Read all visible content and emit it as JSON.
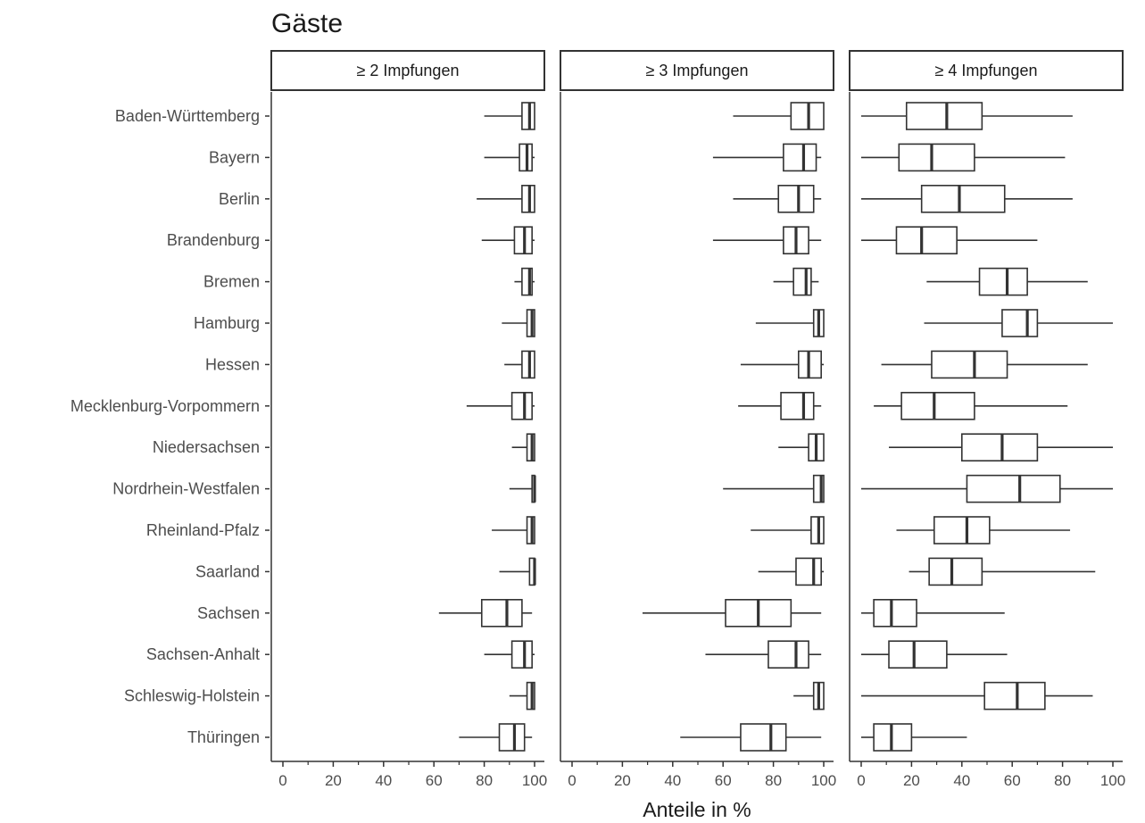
{
  "chart_data": {
    "type": "boxplot",
    "title": "Gäste",
    "xlabel": "Anteile in %",
    "ylabel": "",
    "xlim": [
      0,
      100
    ],
    "x_ticks": [
      "0",
      "20",
      "40",
      "60",
      "80",
      "100"
    ],
    "categories": [
      "Baden-Württemberg",
      "Bayern",
      "Berlin",
      "Brandenburg",
      "Bremen",
      "Hamburg",
      "Hessen",
      "Mecklenburg-Vorpommern",
      "Niedersachsen",
      "Nordrhein-Westfalen",
      "Rheinland-Pfalz",
      "Saarland",
      "Sachsen",
      "Sachsen-Anhalt",
      "Schleswig-Holstein",
      "Thüringen"
    ],
    "panels": [
      {
        "label": "≥ 2 Impfungen",
        "boxes": [
          {
            "min": 80,
            "q1": 95,
            "median": 98,
            "q3": 100,
            "max": 100
          },
          {
            "min": 80,
            "q1": 94,
            "median": 97,
            "q3": 99,
            "max": 100
          },
          {
            "min": 77,
            "q1": 95,
            "median": 98,
            "q3": 100,
            "max": 100
          },
          {
            "min": 79,
            "q1": 92,
            "median": 96,
            "q3": 99,
            "max": 100
          },
          {
            "min": 92,
            "q1": 95,
            "median": 98,
            "q3": 99,
            "max": 100
          },
          {
            "min": 87,
            "q1": 97,
            "median": 99,
            "q3": 100,
            "max": 100
          },
          {
            "min": 88,
            "q1": 95,
            "median": 98,
            "q3": 100,
            "max": 100
          },
          {
            "min": 73,
            "q1": 91,
            "median": 96,
            "q3": 99,
            "max": 100
          },
          {
            "min": 91,
            "q1": 97,
            "median": 99,
            "q3": 100,
            "max": 100
          },
          {
            "min": 90,
            "q1": 99,
            "median": 100,
            "q3": 100,
            "max": 100
          },
          {
            "min": 83,
            "q1": 97,
            "median": 99,
            "q3": 100,
            "max": 100
          },
          {
            "min": 86,
            "q1": 98,
            "median": 100,
            "q3": 100,
            "max": 100
          },
          {
            "min": 62,
            "q1": 79,
            "median": 89,
            "q3": 95,
            "max": 99
          },
          {
            "min": 80,
            "q1": 91,
            "median": 96,
            "q3": 99,
            "max": 100
          },
          {
            "min": 90,
            "q1": 97,
            "median": 99,
            "q3": 100,
            "max": 100
          },
          {
            "min": 70,
            "q1": 86,
            "median": 92,
            "q3": 96,
            "max": 99
          }
        ]
      },
      {
        "label": "≥ 3 Impfungen",
        "boxes": [
          {
            "min": 64,
            "q1": 87,
            "median": 94,
            "q3": 100,
            "max": 100
          },
          {
            "min": 56,
            "q1": 84,
            "median": 92,
            "q3": 97,
            "max": 99
          },
          {
            "min": 64,
            "q1": 82,
            "median": 90,
            "q3": 96,
            "max": 99
          },
          {
            "min": 56,
            "q1": 84,
            "median": 89,
            "q3": 94,
            "max": 99
          },
          {
            "min": 80,
            "q1": 88,
            "median": 93,
            "q3": 95,
            "max": 98
          },
          {
            "min": 73,
            "q1": 96,
            "median": 98,
            "q3": 100,
            "max": 100
          },
          {
            "min": 67,
            "q1": 90,
            "median": 94,
            "q3": 99,
            "max": 100
          },
          {
            "min": 66,
            "q1": 83,
            "median": 92,
            "q3": 96,
            "max": 99
          },
          {
            "min": 82,
            "q1": 94,
            "median": 97,
            "q3": 100,
            "max": 100
          },
          {
            "min": 60,
            "q1": 96,
            "median": 99,
            "q3": 100,
            "max": 100
          },
          {
            "min": 71,
            "q1": 95,
            "median": 98,
            "q3": 100,
            "max": 100
          },
          {
            "min": 74,
            "q1": 89,
            "median": 96,
            "q3": 99,
            "max": 100
          },
          {
            "min": 28,
            "q1": 61,
            "median": 74,
            "q3": 87,
            "max": 99
          },
          {
            "min": 53,
            "q1": 78,
            "median": 89,
            "q3": 94,
            "max": 99
          },
          {
            "min": 88,
            "q1": 96,
            "median": 98,
            "q3": 100,
            "max": 100
          },
          {
            "min": 43,
            "q1": 67,
            "median": 79,
            "q3": 85,
            "max": 99
          }
        ]
      },
      {
        "label": "≥ 4 Impfungen",
        "boxes": [
          {
            "min": 0,
            "q1": 18,
            "median": 34,
            "q3": 48,
            "max": 84
          },
          {
            "min": 0,
            "q1": 15,
            "median": 28,
            "q3": 45,
            "max": 81
          },
          {
            "min": 0,
            "q1": 24,
            "median": 39,
            "q3": 57,
            "max": 84
          },
          {
            "min": 0,
            "q1": 14,
            "median": 24,
            "q3": 38,
            "max": 70
          },
          {
            "min": 26,
            "q1": 47,
            "median": 58,
            "q3": 66,
            "max": 90
          },
          {
            "min": 25,
            "q1": 56,
            "median": 66,
            "q3": 70,
            "max": 100
          },
          {
            "min": 8,
            "q1": 28,
            "median": 45,
            "q3": 58,
            "max": 90
          },
          {
            "min": 5,
            "q1": 16,
            "median": 29,
            "q3": 45,
            "max": 82
          },
          {
            "min": 11,
            "q1": 40,
            "median": 56,
            "q3": 70,
            "max": 100
          },
          {
            "min": 0,
            "q1": 42,
            "median": 63,
            "q3": 79,
            "max": 100
          },
          {
            "min": 14,
            "q1": 29,
            "median": 42,
            "q3": 51,
            "max": 83
          },
          {
            "min": 19,
            "q1": 27,
            "median": 36,
            "q3": 48,
            "max": 93
          },
          {
            "min": 0,
            "q1": 5,
            "median": 12,
            "q3": 22,
            "max": 57
          },
          {
            "min": 0,
            "q1": 11,
            "median": 21,
            "q3": 34,
            "max": 58
          },
          {
            "min": 0,
            "q1": 49,
            "median": 62,
            "q3": 73,
            "max": 92
          },
          {
            "min": 0,
            "q1": 5,
            "median": 12,
            "q3": 20,
            "max": 42
          }
        ]
      }
    ]
  }
}
